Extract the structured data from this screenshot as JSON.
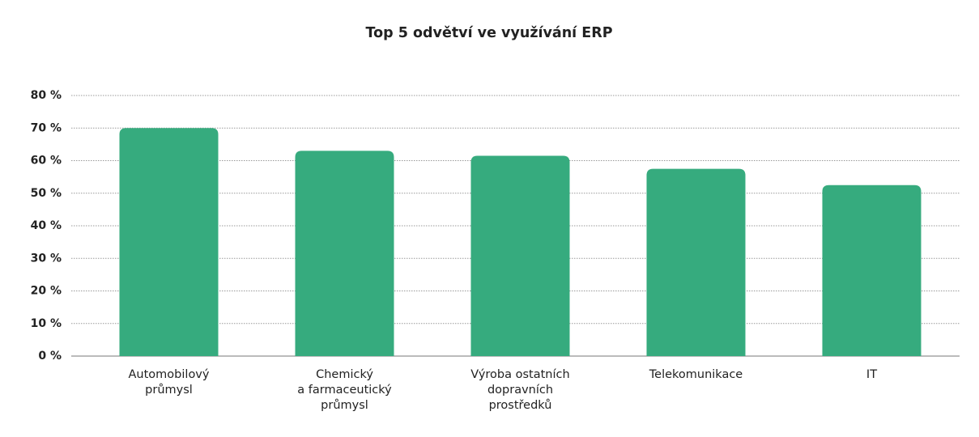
{
  "chart_data": {
    "type": "bar",
    "title": "Top 5 odvětví ve využívání ERP",
    "categories": [
      "Automobilový\nprůmysl",
      "Chemický\na farmaceutický\nprůmysl",
      "Výroba ostatních\ndopravních\nprostředků",
      "Telekomunikace",
      "IT"
    ],
    "values": [
      70,
      63,
      61.5,
      57.5,
      52.5
    ],
    "color": "#36ab7e",
    "ylim": [
      0,
      80
    ],
    "yticks": [
      {
        "value": 0,
        "label": "0 %"
      },
      {
        "value": 10,
        "label": "10 %"
      },
      {
        "value": 20,
        "label": "20 %"
      },
      {
        "value": 30,
        "label": "30 %"
      },
      {
        "value": 40,
        "label": "40 %"
      },
      {
        "value": 50,
        "label": "50 %"
      },
      {
        "value": 60,
        "label": "60 %"
      },
      {
        "value": 70,
        "label": "70 %"
      },
      {
        "value": 80,
        "label": "80 %"
      }
    ],
    "grid": true
  }
}
